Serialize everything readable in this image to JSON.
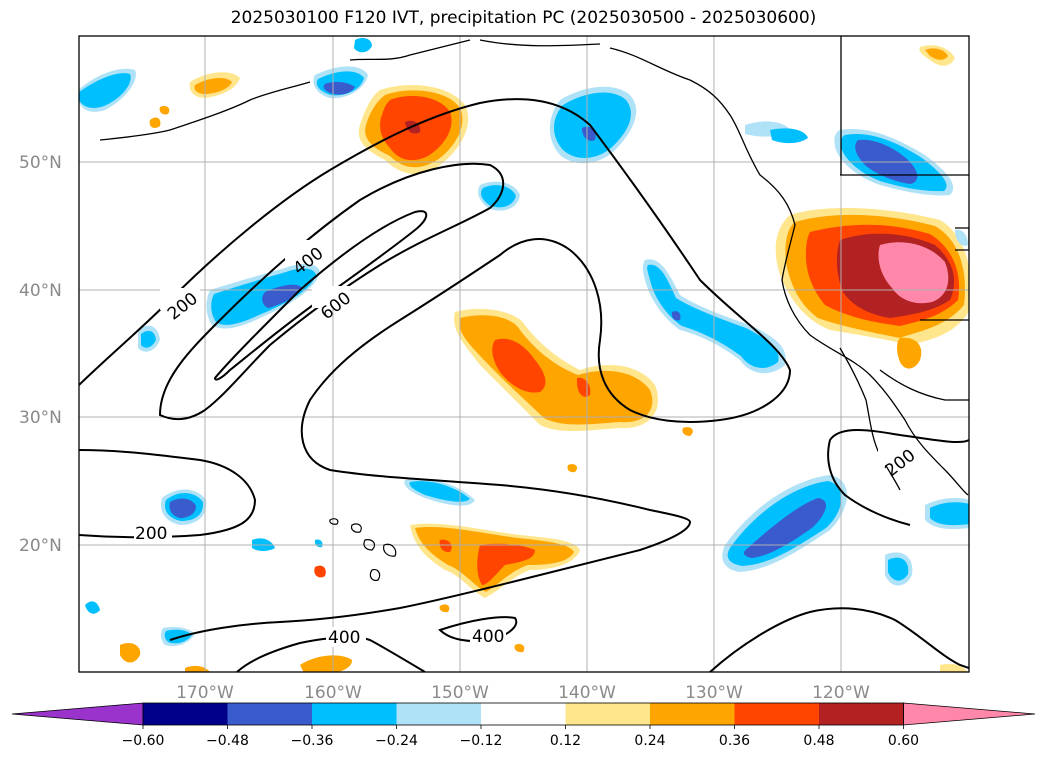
{
  "title": "2025030100 F120 IVT, precipitation PC (2025030500 - 2025030600)",
  "lat_labels": [
    "50°N",
    "40°N",
    "30°N",
    "20°N"
  ],
  "lon_labels": [
    "170°W",
    "160°W",
    "150°W",
    "140°W",
    "130°W",
    "120°W"
  ],
  "colorbar": {
    "ticks": [
      "−0.60",
      "−0.48",
      "−0.36",
      "−0.24",
      "−0.12",
      "0.12",
      "0.24",
      "0.36",
      "0.48",
      "0.60"
    ],
    "colors": [
      "#9933cc",
      "#00008b",
      "#3a5bcc",
      "#00bfff",
      "#b0e2f7",
      "#ffffff",
      "#ffe68c",
      "#ffa500",
      "#ff4500",
      "#b22222",
      "#ff88aa"
    ]
  },
  "contour_labels": [
    "200",
    "400",
    "600",
    "200",
    "200",
    "400",
    "400"
  ],
  "colors": {
    "neg_light": "#b0e2f7",
    "neg_mid": "#00bfff",
    "neg_strong": "#3a5bcc",
    "pos_light": "#ffe68c",
    "pos_mid": "#ffa500",
    "pos_strong": "#ff4500",
    "pos_vstrong": "#b22222",
    "pos_max": "#ff88aa"
  }
}
